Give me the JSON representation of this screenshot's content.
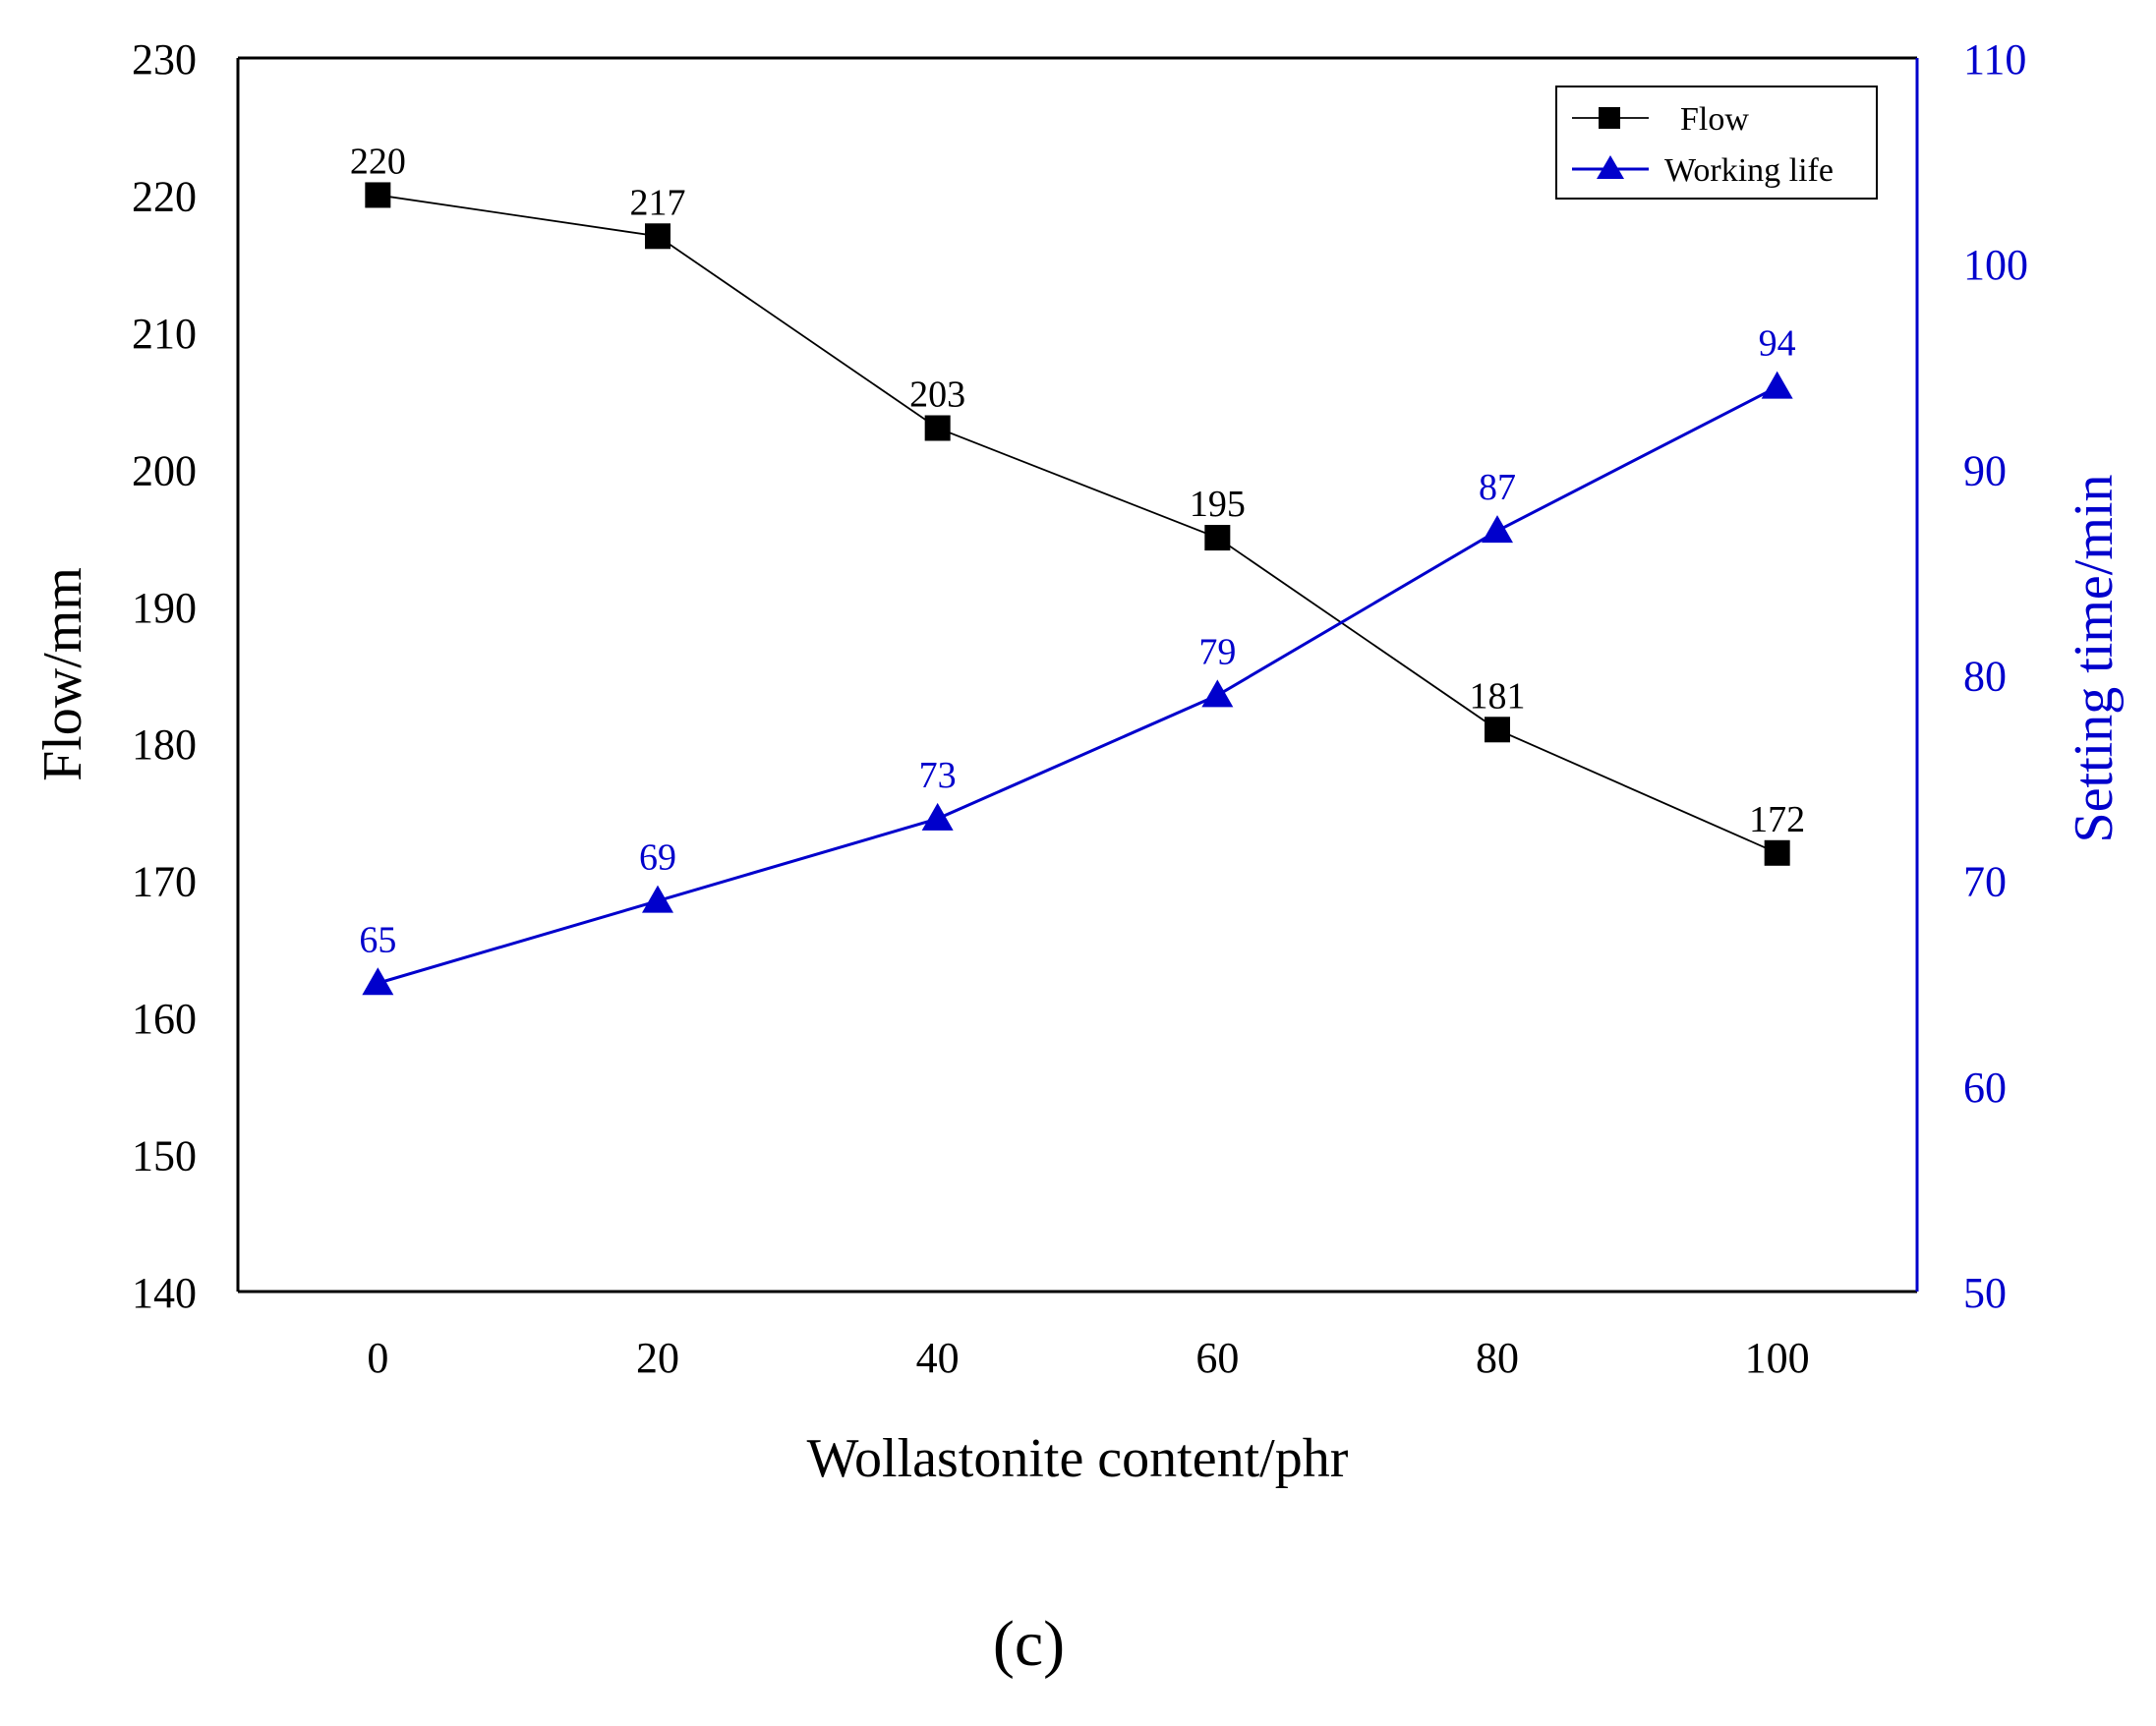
{
  "chart_data": {
    "type": "line",
    "title": "",
    "xlabel": "Wollastonite content/phr",
    "ylabel": "Flow/mm",
    "y2label": "Setting time/min",
    "categories": [
      0,
      20,
      40,
      60,
      80,
      100
    ],
    "x_tick_labels": [
      "0",
      "20",
      "40",
      "60",
      "80",
      "100"
    ],
    "xlim": [
      -10,
      110
    ],
    "ylim": [
      140,
      230
    ],
    "y_ticks": [
      140,
      150,
      160,
      170,
      180,
      190,
      200,
      210,
      220,
      230
    ],
    "y2lim": [
      50,
      110
    ],
    "y2_ticks": [
      50,
      60,
      70,
      80,
      90,
      100,
      110
    ],
    "grid": false,
    "legend_position": "top-right",
    "series": [
      {
        "name": "Flow",
        "axis": "left",
        "marker": "square",
        "color": "#000000",
        "x": [
          0,
          20,
          40,
          60,
          80,
          100
        ],
        "values": [
          220,
          217,
          203,
          195,
          181,
          172
        ],
        "data_labels": [
          "220",
          "217",
          "203",
          "195",
          "181",
          "172"
        ]
      },
      {
        "name": "Working life",
        "axis": "right",
        "marker": "triangle",
        "color": "#0000cc",
        "x": [
          0,
          20,
          40,
          60,
          80,
          100
        ],
        "values": [
          65,
          69,
          73,
          79,
          87,
          94
        ],
        "data_labels": [
          "65",
          "69",
          "73",
          "79",
          "87",
          "94"
        ]
      }
    ]
  },
  "figure_label": "(c)"
}
